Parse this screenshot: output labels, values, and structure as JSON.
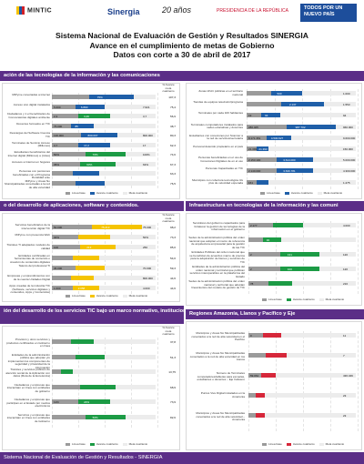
{
  "header": {
    "ministry": "MINTIC",
    "sinergia": "Sinergia",
    "years": "20 años",
    "presidency": "PRESIDENCIA DE LA REPÚBLICA",
    "campaign": "TODOS POR UN NUEVO PAÍS"
  },
  "title": {
    "l1": "Sistema Nacional de Evaluación de Gestión y Resultados SINERGIA",
    "l2": "Avance en el cumplimiento de metas de Gobierno",
    "l3": "Datos con corte a 30 de abril de 2017"
  },
  "sections": {
    "s1": "ación de las tecnologías de la información y las comunicaciones",
    "s2": "o del desarrollo de aplicaciones, software y contenidos.",
    "s3": "Infraestructura en tecnologías de la información y las comuni",
    "s4": "ión del desarrollo de los servicios TIC bajo un marco normativo, institucional torio convergente.",
    "s5": "Regiones Amazonía, Llanos y Pacífico y Eje"
  },
  "legend": {
    "base": "Línea base",
    "avance": "Avance cuatrienio",
    "meta": "Meta cuatrienio"
  },
  "colhead": "% Avance meta cuatrienio",
  "colors": {
    "purple": "#5b2e87",
    "blue": "#1f5fa8",
    "green": "#1c9b45",
    "yellow": "#f5c400",
    "red": "#d6273a",
    "grey": "#9b9b9b"
  },
  "p1": {
    "rows": [
      {
        "label": "MiPyme conectadas a internet",
        "base": "",
        "bar": "75%",
        "meta": "",
        "pct": "107,3"
      },
      {
        "label": "Acceso vivo digital instalados",
        "base": "5.000",
        "bar": "6.890",
        "meta": "7.621",
        "pct": "75,4"
      },
      {
        "label": "Ciudadanos y 1 el beneficiarios de Convocatorias digitales ambiente",
        "base": "2,3",
        "bar": "3,46",
        "meta": "3,7",
        "pct": "56,9"
      },
      {
        "label": "Docentes formados en TIC",
        "base": "75.000",
        "bar": "85",
        "meta": "",
        "pct": "38,7"
      },
      {
        "label": "Descargas del Software Cuenca TIC",
        "base": "136.000",
        "bar": "800.007",
        "meta": "800.000",
        "pct": "80,3"
      },
      {
        "label": "Terminales de Servicio Acceso (Millones)",
        "base": "3,7",
        "bar": "17,2",
        "meta": "17",
        "pct": "62,3"
      },
      {
        "label": "Estudiantes beneficiarios del Internet digital (Millones) a (miles)",
        "base": "50%",
        "bar": "70%",
        "meta": "100%",
        "pct": "74,6"
      },
      {
        "label": "Accesos a Internet en hogares",
        "base": "35%",
        "bar": "63%",
        "meta": "63%",
        "pct": "67,3"
      },
      {
        "label": "Personas con pensiones beneficiadas con el Programa Ruralidad ante",
        "base": "",
        "bar": "",
        "meta": "",
        "pct": "63,3"
      },
      {
        "label": "MiPyme y Áreas No Municipalizadas conectadas a la red de alta velocidad",
        "base": "",
        "bar": "",
        "meta": "",
        "pct": "76,5"
      }
    ]
  },
  "p2": {
    "rows": [
      {
        "label": "Servicios beneficiarios de la intervención digital TIC",
        "base": "50.000",
        "bar": "75.213",
        "meta": "75.000",
        "pct": "98,2"
      },
      {
        "label": "MiPyme con presencia Web",
        "base": "30%",
        "bar": "",
        "meta": "50%",
        "pct": "73,3"
      },
      {
        "label": "Trámites TI adaptados modelos de calidad",
        "base": "100",
        "bar": "213",
        "meta": "250",
        "pct": "85,0"
      },
      {
        "label": "Entidades certificadas en herramientas de contenido o creación de contenidos digitales",
        "base": "",
        "bar": "",
        "meta": "",
        "pct": "54,0"
      },
      {
        "label": "Talento del profesional TI",
        "base": "36.000",
        "bar": "",
        "meta": "70.000",
        "pct": "59,3"
      },
      {
        "label": "Empresas y emprendimientos con de la cuenta Unidades Digital",
        "base": "",
        "bar": "",
        "meta": "800.000",
        "pct": "44,6"
      },
      {
        "label": "Apps creadas de la industria TIC (Software, servicios digitales y contenidos, Apps y Contenidos)",
        "base": "1.000",
        "bar": "2.058",
        "meta": "4.000",
        "pct": "44,6"
      }
    ]
  },
  "p3": {
    "rows": [
      {
        "label": "Zonas Wi-Fi públicas en el territorio nacional",
        "base": "",
        "bar": "500",
        "meta": "1.000",
        "pct": ""
      },
      {
        "label": "Tiendas de equipos televisión/programa",
        "base": "",
        "bar": "2.137",
        "meta": "1.553",
        "pct": ""
      },
      {
        "label": "Terminales por cada 100 habitantes",
        "base": "19",
        "bar": "94",
        "meta": "94",
        "pct": ""
      },
      {
        "label": "Terminales computadores instalados para sedes educativas y docentes",
        "base": "286.405",
        "bar": "987.702",
        "meta": "960.000",
        "pct": ""
      },
      {
        "label": "Estudiantes con conexiones por Scanner a la red de servicios/secretaría",
        "base": "8.171.351",
        "bar": "4.530.927",
        "meta": "9.600.000",
        "pct": ""
      },
      {
        "label": "Personal detenido propietario en el país",
        "base": "21.393",
        "bar": "21.393",
        "meta": "150.000",
        "pct": ""
      },
      {
        "label": "Personas beneficiadas en el uso de Conexiones Digitales de en el uso",
        "base": "2.153.100",
        "bar": "3.614.000",
        "meta": "5.000.000",
        "pct": ""
      },
      {
        "label": "Personas Capacitadas en TIC",
        "base": "2.140.000",
        "bar": "3.636.781",
        "meta": "4.300.000",
        "pct": ""
      },
      {
        "label": "Municipios con cobertura tecnológica 4G plus de velocidad esperada",
        "base": "161",
        "bar": "",
        "meta": "1.275",
        "pct": ""
      }
    ]
  },
  "p4": {
    "rows": [
      {
        "label": "Servidores del gobierno capacitados para fortalecer la gestión de tecnologías de la información en el gobierno",
        "base": "2.177",
        "bar": "",
        "meta": "4.000",
        "pct": ""
      },
      {
        "label": "Sedes de la administración pública del orden nacional que adoptan el marco de referencia de arquitectura empresarial para la gestión de las TIC",
        "base": "",
        "bar": "30",
        "meta": "",
        "pct": ""
      },
      {
        "label": "Entidades Públicas del orden nacional que se benefician de acuerdos marco de precios para la adquisición de bienes y servicios de TIC",
        "base": "2",
        "bar": "131",
        "meta": "120",
        "pct": ""
      },
      {
        "label": "Entidades de la administración pública del orden nacional y territorial que publican servicios interoperables en la plataforma del Estado",
        "base": "2",
        "bar": "100",
        "meta": "120",
        "pct": ""
      },
      {
        "label": "Sedes de la administración pública del orden nacional y territorial que adoptan lineamientos del modelo de gestión de TIC",
        "base": "78",
        "bar": "",
        "meta": "216",
        "pct": ""
      }
    ]
  },
  "p5": {
    "rows": [
      {
        "label": "Provisión y otros servicios y productos certificados en Gobierno en línea",
        "base": "",
        "bar": "",
        "meta": "",
        "pct": "37,8"
      },
      {
        "label": "Entidades de la administración pública que adoptan y/o implementan los componentes de seguridad y privacidad de la información",
        "base": "",
        "bar": "",
        "meta": "",
        "pct": "51,3"
      },
      {
        "label": "Trámites y servicios públicos de atención social de la Aplicación con datos (Ruta de la Excelencia)",
        "base": "",
        "bar": "",
        "meta": "",
        "pct": "13,75"
      },
      {
        "label": "Ciudadanos y empresas que interactúan en línea con entidades de gobierno",
        "base": "",
        "bar": "",
        "meta": "",
        "pct": "68,9"
      },
      {
        "label": "Ciudadanos y empresas que participan en el Estado por medios electrónicos",
        "base": "11%",
        "bar": "24%",
        "meta": "",
        "pct": "73,9"
      },
      {
        "label": "Servicios y empresas que interactúan en línea con entidades de Gobierno",
        "base": "",
        "bar": "50%",
        "meta": "",
        "pct": "82,6"
      }
    ]
  },
  "p6": {
    "rows": [
      {
        "label": "Municipios y Áreas No Municipalizadas conectados a la red de alta velocidad en el Pacífico",
        "base": "0",
        "bar": "",
        "meta": "11",
        "pct": ""
      },
      {
        "label": "Municipios y Áreas No Municipalizadas conectados a la red de alta velocidad en los Llanos",
        "base": "",
        "bar": "",
        "meta": "7",
        "pct": ""
      },
      {
        "label": "Número de Terminales computadores/tabletas para escuelas, estudiantes o docentes – Eje Cafetero",
        "base": "59.061",
        "bar": "",
        "meta": "436.349",
        "pct": ""
      },
      {
        "label": "Puntos Vive Digital instalados en la Amazonía",
        "base": "",
        "bar": "",
        "meta": "23",
        "pct": ""
      },
      {
        "label": "Municipios y Áreas No Municipalizadas conectados a la red de alta velocidad – Amazonía",
        "base": "",
        "bar": "",
        "meta": "23",
        "pct": ""
      }
    ]
  },
  "footer": "Sistema Nacional de Evaluación de Gestión y Resultados - SINERGIA"
}
